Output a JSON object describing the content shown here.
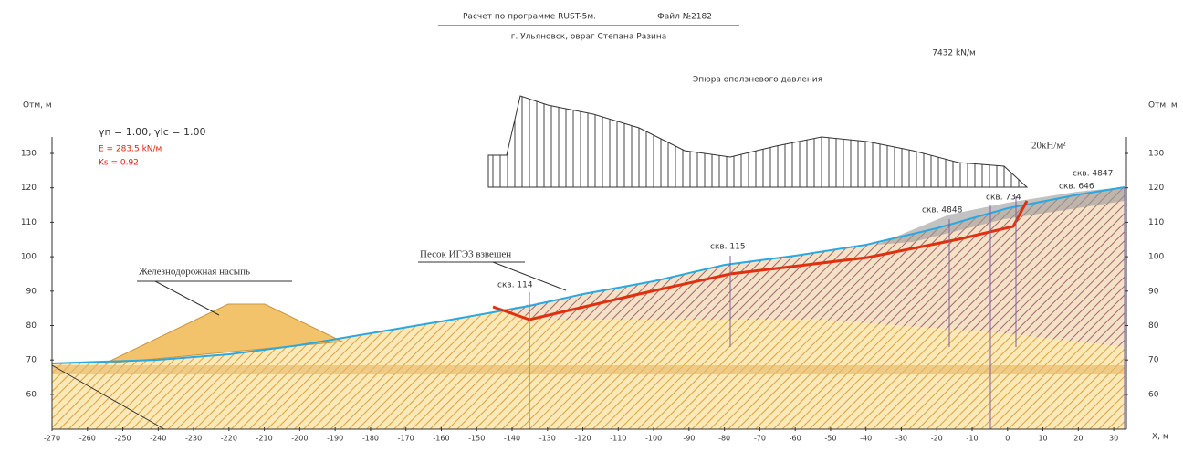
{
  "header": {
    "title": "Расчет по программе RUST-5м.",
    "file": "Файл №2182",
    "subtitle": "г. Ульяновск, овраг Степана Разина",
    "force": "7432 kN/м"
  },
  "diagram": {
    "title": "Эпюра оползневого давления",
    "load": "20кН/м²"
  },
  "parameters": {
    "gammas": "γn = 1.00,  γlc = 1.00",
    "E": "E = 283.5 kN/м",
    "Ks": "Ks = 0.92"
  },
  "axes": {
    "y_label_left": "Отм, м",
    "y_label_right": "Отм, м",
    "x_label": "X, м",
    "y_ticks": [
      "130",
      "120",
      "110",
      "100",
      "90",
      "80",
      "70",
      "60"
    ],
    "x_ticks": [
      "-270",
      "-260",
      "-250",
      "-240",
      "-230",
      "-220",
      "-210",
      "-200",
      "-190",
      "-180",
      "-170",
      "-160",
      "-150",
      "-140",
      "-130",
      "-120",
      "-110",
      "-100",
      "-90",
      "-80",
      "-70",
      "-60",
      "-50",
      "-40",
      "-30",
      "-20",
      "-10",
      "0",
      "10",
      "20",
      "30"
    ]
  },
  "labels": {
    "boreholes": [
      "скв. 4847",
      "скв. 646",
      "скв. 734",
      "скв. 4848",
      "скв. 115",
      "скв. 114"
    ],
    "sand": "Песок ИГЭ3 взвешен",
    "embankment": "Железнодорожная насыпь"
  }
}
